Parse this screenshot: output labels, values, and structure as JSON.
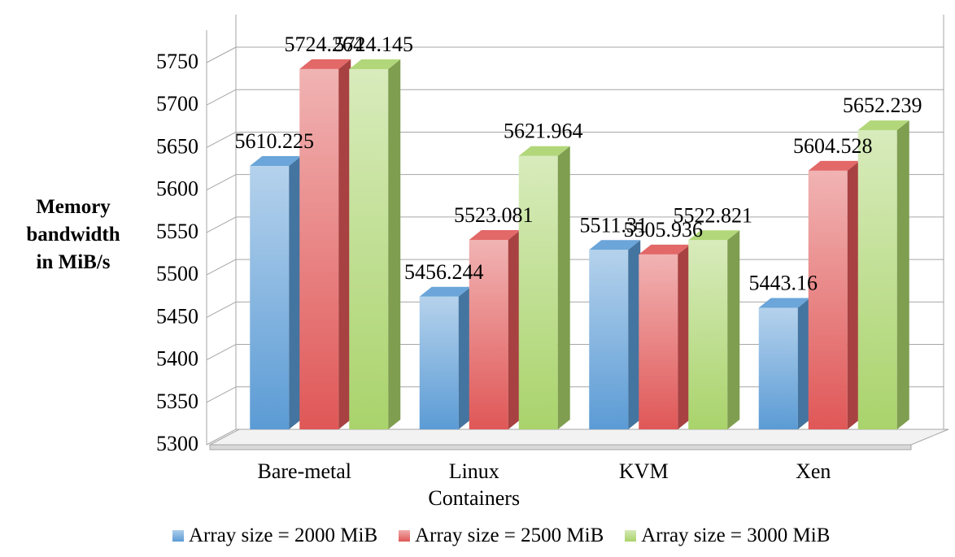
{
  "chart_data": {
    "type": "bar",
    "title": "",
    "xlabel": "",
    "ylabel": "Memory\nbandwidth\nin MiB/s",
    "ylim": [
      5300,
      5750
    ],
    "ytick_step": 50,
    "yticks": [
      "5300",
      "5350",
      "5400",
      "5450",
      "5500",
      "5550",
      "5600",
      "5650",
      "5700",
      "5750"
    ],
    "grid": true,
    "three_d": true,
    "legend_position": "bottom",
    "categories": [
      "Bare-metal",
      "Linux\nContainers",
      "KVM",
      "Xen"
    ],
    "series": [
      {
        "name": "Array size = 2000 MiB",
        "color": "#5b9bd5",
        "values": [
          5610.225,
          5456.244,
          5511.31,
          5443.16
        ],
        "labels": [
          "5610.225",
          "5456.244",
          "5511.31",
          "5443.16"
        ]
      },
      {
        "name": "Array size = 2500 MiB",
        "color": "#e05757",
        "values": [
          5724.264,
          5523.081,
          5505.936,
          5604.528
        ],
        "labels": [
          "5724.264",
          "5523.081",
          "5505.936",
          "5604.528"
        ]
      },
      {
        "name": "Array size = 3000 MiB",
        "color": "#a9d36b",
        "values": [
          5724.145,
          5621.964,
          5522.821,
          5652.239
        ],
        "labels": [
          "5724.145",
          "5621.964",
          "5522.821",
          "5652.239"
        ]
      }
    ]
  }
}
